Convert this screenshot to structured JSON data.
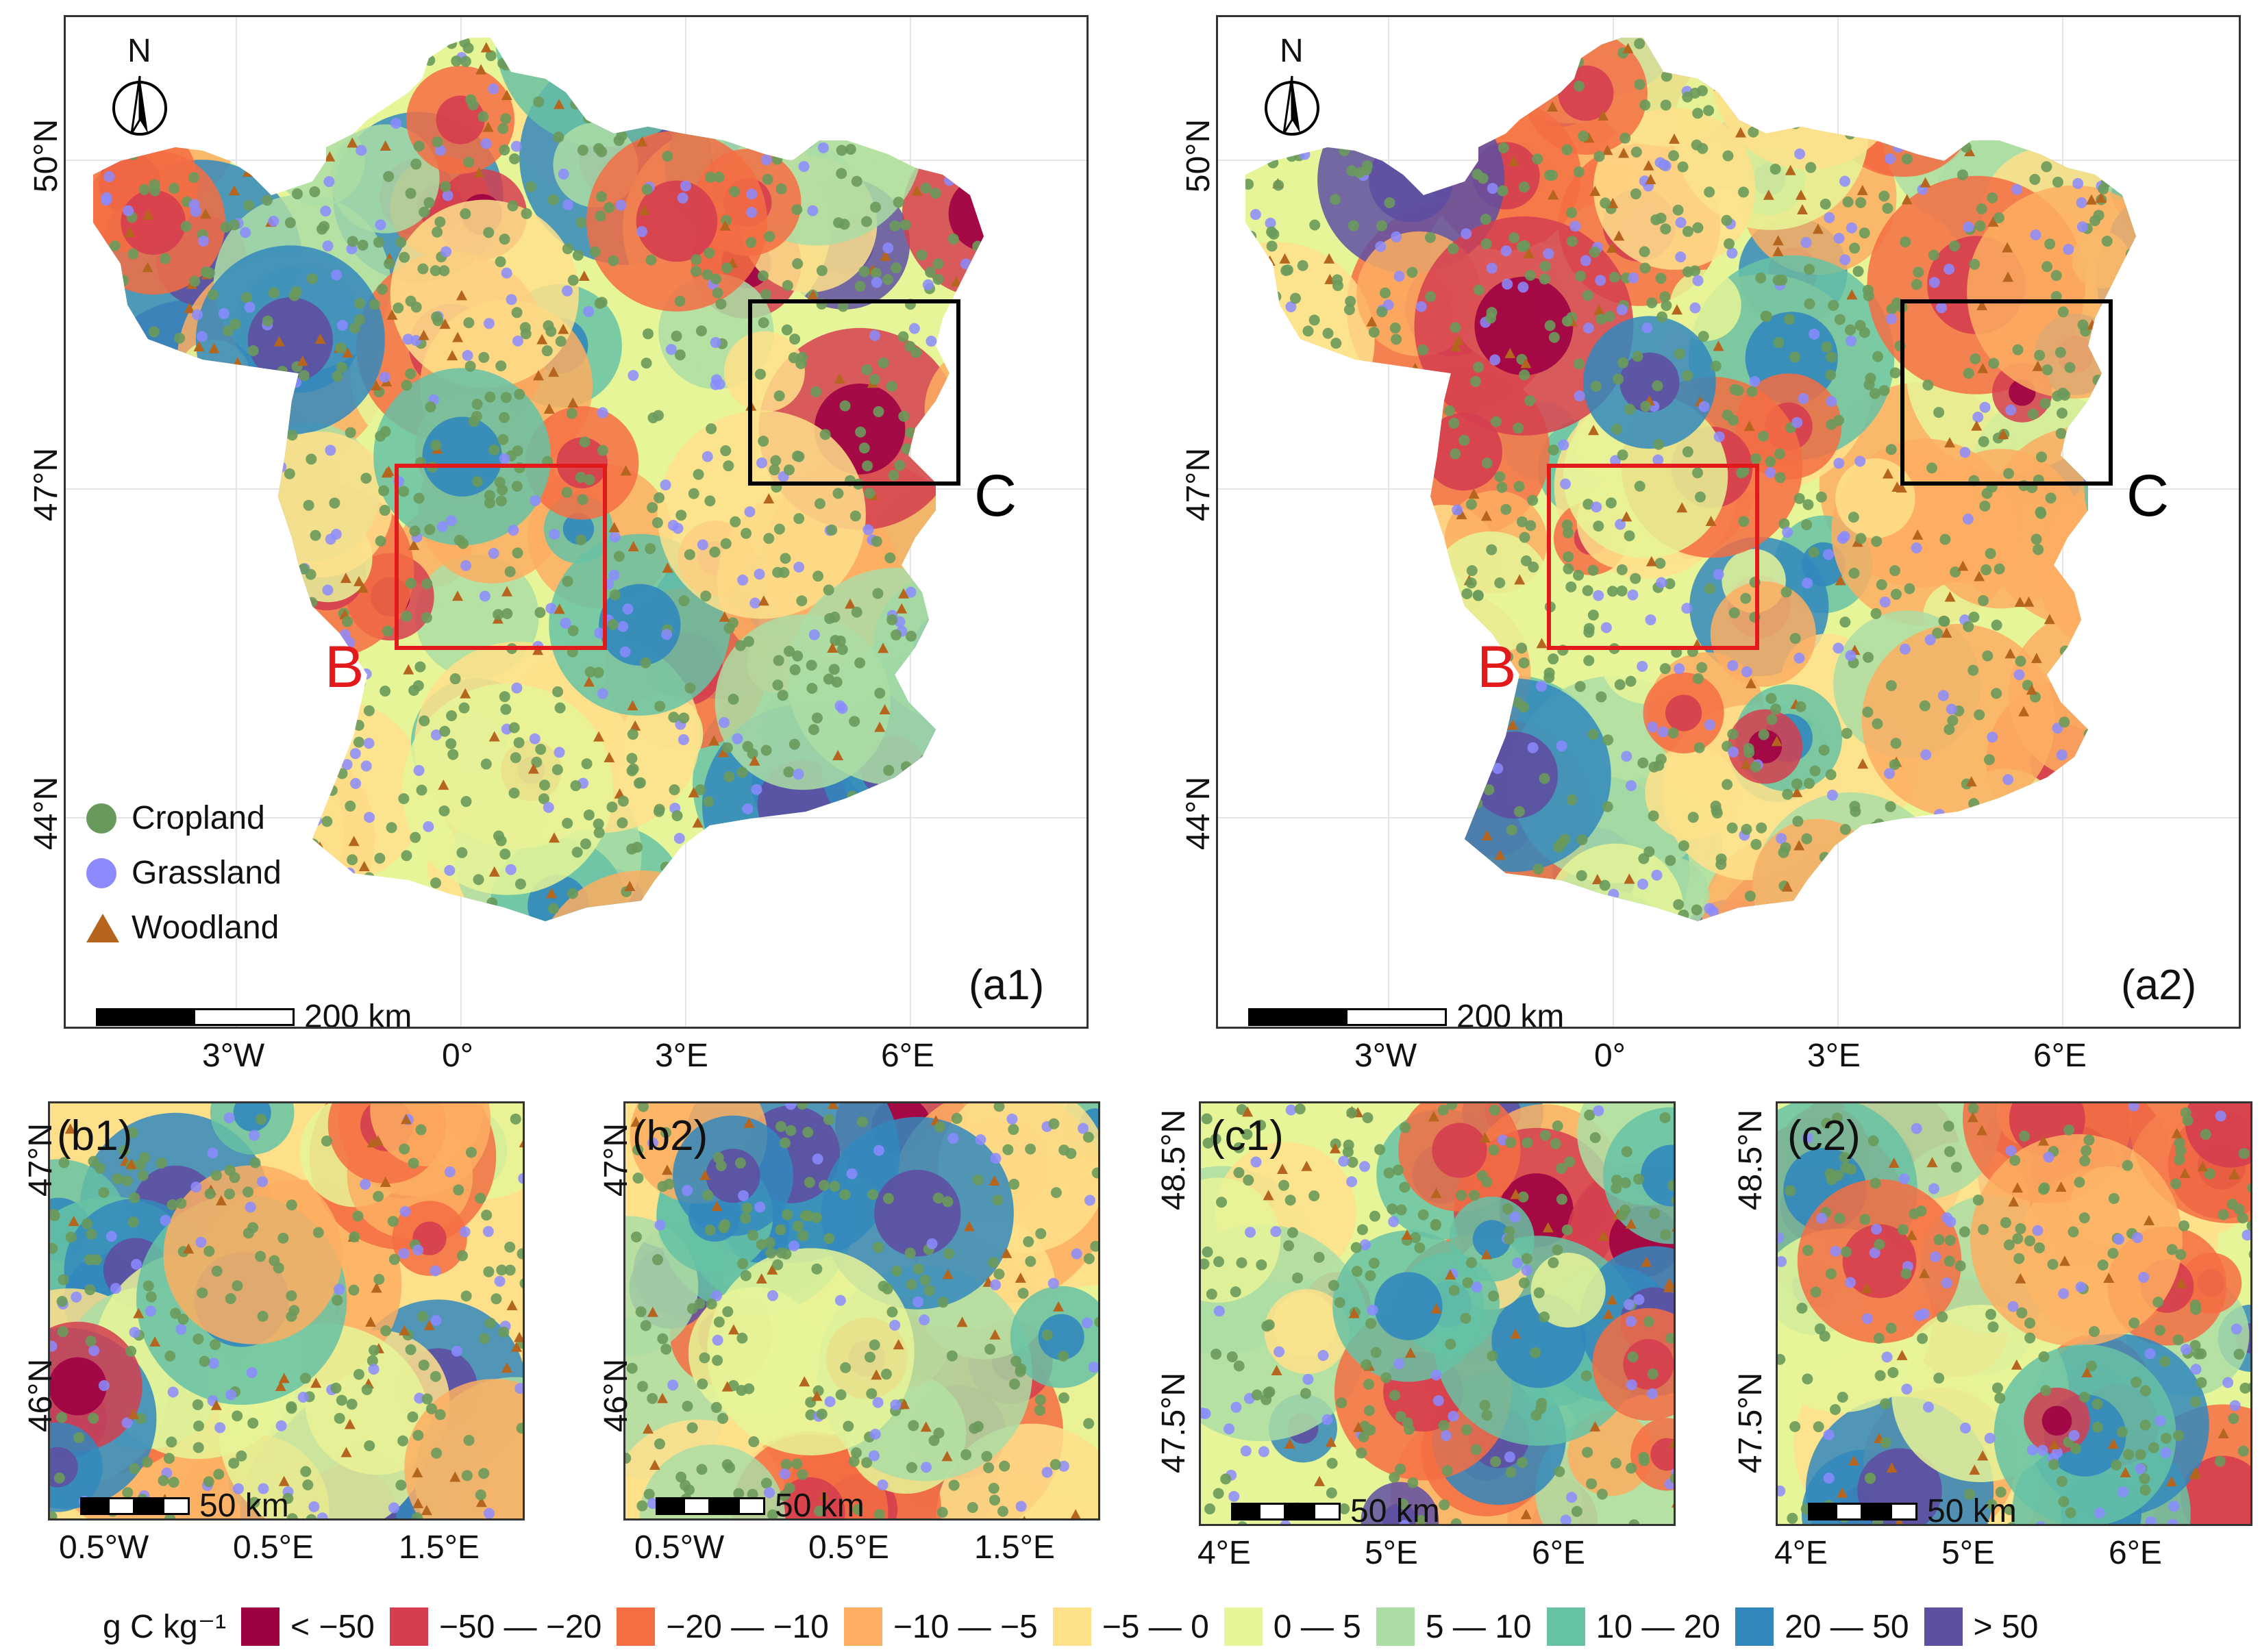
{
  "panels": {
    "a1": {
      "label": "(a1)",
      "scalebar": "200 km",
      "lat_ticks": [
        "50°N",
        "47°N",
        "44°N"
      ],
      "lon_ticks": [
        "3°W",
        "0°",
        "3°E",
        "6°E"
      ]
    },
    "a2": {
      "label": "(a2)",
      "scalebar": "200 km",
      "lat_ticks": [
        "50°N",
        "47°N",
        "44°N"
      ],
      "lon_ticks": [
        "3°W",
        "0°",
        "3°E",
        "6°E"
      ]
    },
    "b1": {
      "label": "(b1)",
      "scalebar": "50 km",
      "lat_ticks": [
        "47°N",
        "46°N"
      ],
      "lon_ticks": [
        "0.5°W",
        "0.5°E",
        "1.5°E"
      ]
    },
    "b2": {
      "label": "(b2)",
      "scalebar": "50 km",
      "lat_ticks": [
        "47°N",
        "46°N"
      ],
      "lon_ticks": [
        "0.5°W",
        "0.5°E",
        "1.5°E"
      ]
    },
    "c1": {
      "label": "(c1)",
      "scalebar": "50 km",
      "lat_ticks": [
        "48.5°N",
        "47.5°N"
      ],
      "lon_ticks": [
        "4°E",
        "5°E",
        "6°E"
      ]
    },
    "c2": {
      "label": "(c2)",
      "scalebar": "50 km",
      "lat_ticks": [
        "48.5°N",
        "47.5°N"
      ],
      "lon_ticks": [
        "4°E",
        "5°E",
        "6°E"
      ]
    }
  },
  "region_labels": {
    "b": "B",
    "c": "C"
  },
  "north_label": "N",
  "legend": {
    "cropland": "Cropland",
    "grassland": "Grassland",
    "woodland": "Woodland"
  },
  "colorbar": {
    "unit": "g C kg⁻¹",
    "classes": [
      {
        "label": "< −50",
        "color": "#9e0142"
      },
      {
        "label": "−50 — −20",
        "color": "#d53e4f"
      },
      {
        "label": "−20 — −10",
        "color": "#f46d43"
      },
      {
        "label": "−10 — −5",
        "color": "#fdae61"
      },
      {
        "label": "−5 — 0",
        "color": "#fee08b"
      },
      {
        "label": "0 — 5",
        "color": "#e6f598"
      },
      {
        "label": "5 — 10",
        "color": "#abdda4"
      },
      {
        "label": "10 — 20",
        "color": "#66c2a5"
      },
      {
        "label": "20 — 50",
        "color": "#3288bd"
      },
      {
        "label": "> 50",
        "color": "#5e4fa2"
      }
    ]
  },
  "colors": {
    "cropland": "#6a9a5b",
    "grassland": "#8b8bff",
    "woodland": "#b5651d",
    "box_b": "#e31a1c",
    "box_c": "#000000"
  }
}
